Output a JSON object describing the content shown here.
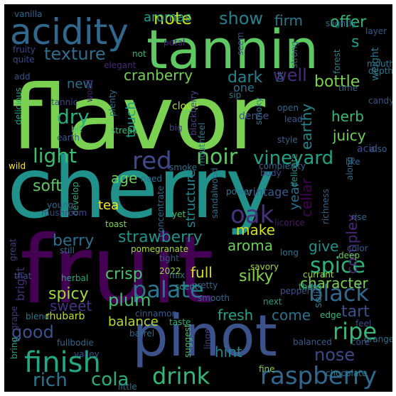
{
  "words": [
    {
      "text": "cherry",
      "color": "#21918c"
    },
    {
      "text": "flavor",
      "color": "#7ad151"
    },
    {
      "text": "fruit",
      "color": "#440154"
    },
    {
      "text": "tannin",
      "color": "#5ec962"
    },
    {
      "text": "pinot",
      "color": "#3b528b"
    },
    {
      "text": "acidity",
      "color": "#31688e"
    },
    {
      "text": "finish",
      "color": "#22a884"
    },
    {
      "text": "drink",
      "color": "#35b779"
    },
    {
      "text": "raspberry",
      "color": "#31688e"
    },
    {
      "text": "palate",
      "color": "#2a788e"
    },
    {
      "text": "spice",
      "color": "#2db27d"
    },
    {
      "text": "black",
      "color": "#31688e"
    },
    {
      "text": "noir",
      "color": "#5ec962"
    },
    {
      "text": "vineyard",
      "color": "#20a386"
    },
    {
      "text": "red",
      "color": "#3e4a89"
    },
    {
      "text": "oak",
      "color": "#46327e"
    },
    {
      "text": "ripe",
      "color": "#37b878"
    },
    {
      "text": "texture",
      "color": "#2e6f8e"
    },
    {
      "text": "light",
      "color": "#3dbc74"
    },
    {
      "text": "dry",
      "color": "#29af7f"
    },
    {
      "text": "well",
      "color": "#472c7a"
    },
    {
      "text": "note",
      "color": "#c8e020"
    },
    {
      "text": "show",
      "color": "#27808e"
    },
    {
      "text": "rich",
      "color": "#2a768e"
    },
    {
      "text": "cola",
      "color": "#29af7f"
    },
    {
      "text": "strawberry",
      "color": "#21918c"
    },
    {
      "text": "good",
      "color": "#3b528b"
    },
    {
      "text": "plum",
      "color": "#44bf70"
    },
    {
      "text": "nose",
      "color": "#3e4989"
    },
    {
      "text": "crisp",
      "color": "#4ac16d"
    },
    {
      "text": "soft",
      "color": "#5ec962"
    },
    {
      "text": "cranberry",
      "color": "#75d054"
    },
    {
      "text": "aroma",
      "color": "#6ccd5a"
    },
    {
      "text": "berry",
      "color": "#2e6e8e"
    },
    {
      "text": "age",
      "color": "#6ccd5a"
    },
    {
      "text": "make",
      "color": "#d0e11c"
    },
    {
      "text": "offer",
      "color": "#35b779"
    },
    {
      "text": "bottle",
      "color": "#7ad151"
    },
    {
      "text": "dark",
      "color": "#26828e"
    },
    {
      "text": "firm",
      "color": "#2a788e"
    },
    {
      "text": "juicy",
      "color": "#70cf57"
    },
    {
      "text": "earthy",
      "color": "#23888e"
    },
    {
      "text": "herb",
      "color": "#3aba76"
    },
    {
      "text": "give",
      "color": "#21918c"
    },
    {
      "text": "complex",
      "color": "#482878"
    },
    {
      "text": "tart",
      "color": "#3b528b"
    },
    {
      "text": "silky",
      "color": "#84d44b"
    },
    {
      "text": "character",
      "color": "#7ad151"
    },
    {
      "text": "full",
      "color": "#d8e219"
    },
    {
      "text": "fresh",
      "color": "#20a386"
    },
    {
      "text": "come",
      "color": "#2c718e"
    },
    {
      "text": "spicy",
      "color": "#a0da39"
    },
    {
      "text": "sweet",
      "color": "#46337f"
    },
    {
      "text": "balance",
      "color": "#b5de2b"
    },
    {
      "text": "hint",
      "color": "#25858e"
    },
    {
      "text": "structure",
      "color": "#25858e"
    },
    {
      "text": "year",
      "color": "#2c728e"
    },
    {
      "text": "vintage",
      "color": "#365c8d"
    },
    {
      "text": "cellar",
      "color": "#440154"
    },
    {
      "text": "tea",
      "color": "#fde725"
    },
    {
      "text": "touch",
      "color": "#1fa188"
    },
    {
      "text": "new",
      "color": "#2c728e"
    },
    {
      "text": "aromas",
      "color": "#1f9e89"
    },
    {
      "text": "bright",
      "color": "#472d7b"
    },
    {
      "text": "one",
      "color": "#2c718e"
    },
    {
      "text": "s",
      "color": "#1fa088"
    },
    {
      "text": "weight",
      "color": "#2a788e"
    },
    {
      "text": "solid",
      "color": "#2a778e"
    },
    {
      "text": "acid",
      "color": "#3e4a89"
    },
    {
      "text": "dense",
      "color": "#3b528b"
    },
    {
      "text": "vanilla",
      "color": "#31688e"
    },
    {
      "text": "fruity",
      "color": "#414487"
    },
    {
      "text": "quite",
      "color": "#3e4989"
    },
    {
      "text": "elegant",
      "color": "#482677"
    },
    {
      "text": "petal",
      "color": "#482677"
    },
    {
      "text": "not",
      "color": "#35b779"
    },
    {
      "text": "add",
      "color": "#3b528b"
    },
    {
      "text": "tannic",
      "color": "#3f4788"
    },
    {
      "text": "wood",
      "color": "#482173"
    },
    {
      "text": "plenty",
      "color": "#2e6e8e"
    },
    {
      "text": "delicious",
      "color": "#20a486"
    },
    {
      "text": "bit",
      "color": "#4ac16d"
    },
    {
      "text": "earth",
      "color": "#38598c"
    },
    {
      "text": "clove",
      "color": "#b2dd2d"
    },
    {
      "text": "streak",
      "color": "#3dbc74"
    },
    {
      "text": "big",
      "color": "#3f4788"
    },
    {
      "text": "blackberry",
      "color": "#414487"
    },
    {
      "text": "mouthfeel",
      "color": "#2a788e"
    },
    {
      "text": "smoke",
      "color": "#2d708e"
    },
    {
      "text": "need",
      "color": "#2c718e"
    },
    {
      "text": "wild",
      "color": "#fde725"
    },
    {
      "text": "young",
      "color": "#2e6e8e"
    },
    {
      "text": "develop",
      "color": "#27ad81"
    },
    {
      "text": "mushroom",
      "color": "#3e4989"
    },
    {
      "text": "sandalwood",
      "color": "#2e6e8e"
    },
    {
      "text": "concentrate",
      "color": "#33638d"
    },
    {
      "text": "power",
      "color": "#2a768e"
    },
    {
      "text": "yet",
      "color": "#4ec36b"
    },
    {
      "text": "toast",
      "color": "#7fd34e"
    },
    {
      "text": "pomegranate",
      "color": "#a8db34"
    },
    {
      "text": "tight",
      "color": "#38598c"
    },
    {
      "text": "2022",
      "color": "#9bd93c"
    },
    {
      "text": "long",
      "color": "#2d708e"
    },
    {
      "text": "licorice",
      "color": "#481769"
    },
    {
      "text": "delicate",
      "color": "#1f968b"
    },
    {
      "text": "richness",
      "color": "#33638d"
    },
    {
      "text": "rise",
      "color": "#31688e"
    },
    {
      "text": "color",
      "color": "#365d8d"
    },
    {
      "text": "deep",
      "color": "#6ccd5a"
    },
    {
      "text": "savory",
      "color": "#a5db36"
    },
    {
      "text": "mix",
      "color": "#2a788e"
    },
    {
      "text": "pretty",
      "color": "#33638d"
    },
    {
      "text": "scent",
      "color": "#1f9a8a"
    },
    {
      "text": "pepper",
      "color": "#3b528b"
    },
    {
      "text": "currant",
      "color": "#9bd93c"
    },
    {
      "text": "there",
      "color": "#20a486"
    },
    {
      "text": "smooth",
      "color": "#31688e"
    },
    {
      "text": "next",
      "color": "#1f9e89"
    },
    {
      "text": "cinnamon",
      "color": "#365c8d"
    },
    {
      "text": "taste",
      "color": "#2db27d"
    },
    {
      "text": "linger",
      "color": "#404688"
    },
    {
      "text": "edge",
      "color": "#35b779"
    },
    {
      "text": "feel",
      "color": "#3b528b"
    },
    {
      "text": "core",
      "color": "#39568c"
    },
    {
      "text": "orange",
      "color": "#2c728e"
    },
    {
      "text": "fine",
      "color": "#7ad151"
    },
    {
      "text": "chocolate",
      "color": "#2a788e"
    },
    {
      "text": "balanced",
      "color": "#365c8d"
    },
    {
      "text": "suggest",
      "color": "#4ac16d"
    },
    {
      "text": "barrel",
      "color": "#31688e"
    },
    {
      "text": "little",
      "color": "#2e6e8e"
    },
    {
      "text": "blend",
      "color": "#2a788e"
    },
    {
      "text": "rhubarb",
      "color": "#c0df25"
    },
    {
      "text": "fullbodie",
      "color": "#32658e"
    },
    {
      "text": "bring",
      "color": "#22a785"
    },
    {
      "text": "valley",
      "color": "#3b528b"
    },
    {
      "text": "herbal",
      "color": "#22a785"
    },
    {
      "text": "still",
      "color": "#2c728e"
    },
    {
      "text": "grape",
      "color": "#453781"
    },
    {
      "text": "great",
      "color": "#433e85"
    },
    {
      "text": "that",
      "color": "#3b528b"
    },
    {
      "text": "slightly",
      "color": "#2e6e8e"
    },
    {
      "text": "layer",
      "color": "#38598c"
    },
    {
      "text": "forest",
      "color": "#25838e"
    },
    {
      "text": "strong",
      "color": "#2e6e8e"
    },
    {
      "text": "mouth",
      "color": "#2a788e"
    },
    {
      "text": "seem",
      "color": "#3b528b"
    },
    {
      "text": "lot",
      "color": "#31688e"
    },
    {
      "text": "depth",
      "color": "#2a788e"
    },
    {
      "text": "time",
      "color": "#33638d"
    },
    {
      "text": "candy",
      "color": "#39568c"
    },
    {
      "text": "sip",
      "color": "#2a788e"
    },
    {
      "text": "open",
      "color": "#31688e"
    },
    {
      "text": "lead",
      "color": "#38598c"
    },
    {
      "text": "style",
      "color": "#33638d"
    },
    {
      "text": "complexity",
      "color": "#31688e"
    },
    {
      "text": "body",
      "color": "#3e4989"
    },
    {
      "text": "along",
      "color": "#2e6e8e"
    },
    {
      "text": "also",
      "color": "#33638d"
    },
    {
      "text": "like",
      "color": "#31688e"
    },
    {
      "text": "smoky",
      "color": "#2a788e"
    }
  ]
}
